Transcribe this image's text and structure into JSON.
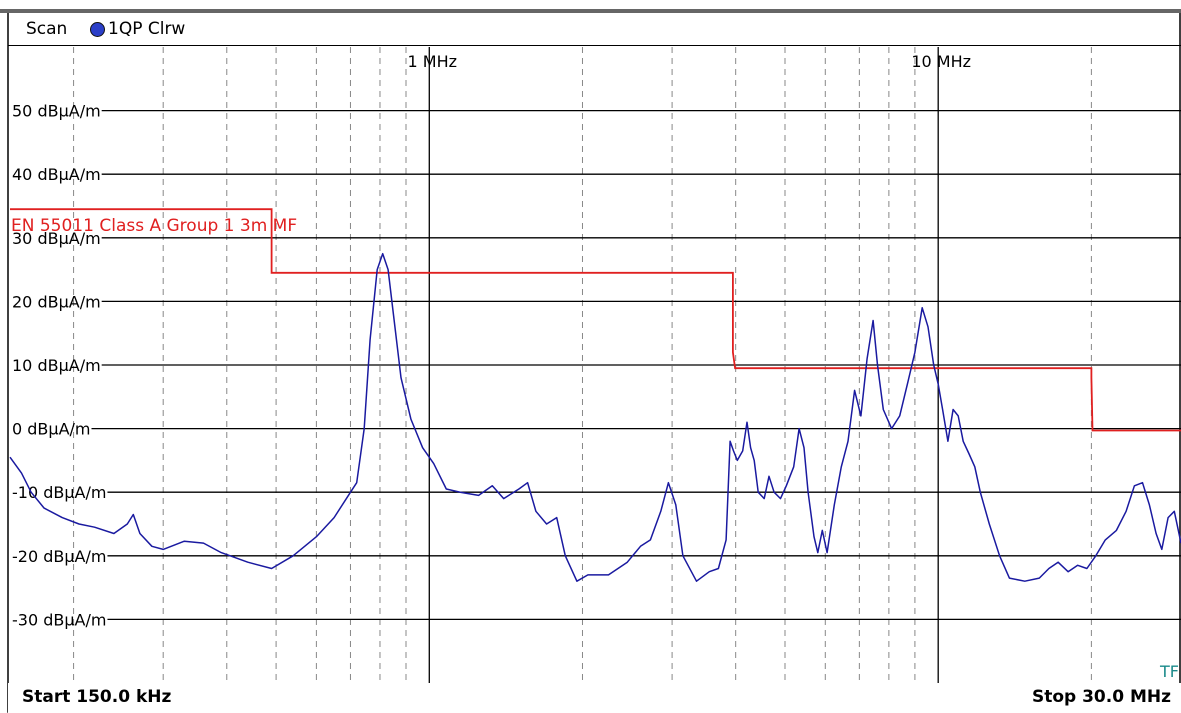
{
  "header": {
    "scan_label": "Scan",
    "trace_label": "1QP Clrw"
  },
  "footer": {
    "start_label": "Start 150.0 kHz",
    "stop_label": "Stop 30.0 MHz"
  },
  "tf_label": "TF",
  "colors": {
    "trace": "#1a1aa0",
    "limit": "#e02020",
    "trace_marker": "#2b3fc8",
    "tf_text": "#1a8a8a"
  },
  "chart_data": {
    "type": "line",
    "x_scale": "log",
    "xlim": [
      150000,
      30000000
    ],
    "ylim": [
      -40,
      60
    ],
    "grid": true,
    "y_ticks": [
      {
        "value": 50,
        "label": "50 dBµA/m"
      },
      {
        "value": 40,
        "label": "40 dBµA/m"
      },
      {
        "value": 30,
        "label": "30 dBµA/m"
      },
      {
        "value": 20,
        "label": "20 dBµA/m"
      },
      {
        "value": 10,
        "label": "10 dBµA/m"
      },
      {
        "value": 0,
        "label": "0 dBµA/m"
      },
      {
        "value": -10,
        "label": "-10 dBµA/m"
      },
      {
        "value": -20,
        "label": "-20 dBµA/m"
      },
      {
        "value": -30,
        "label": "-30 dBµA/m"
      }
    ],
    "x_major_ticks": [
      {
        "value": 1000000,
        "label": "1 MHz"
      },
      {
        "value": 10000000,
        "label": "10 MHz"
      }
    ],
    "x_minor_ticks": [
      200000,
      300000,
      400000,
      500000,
      600000,
      700000,
      800000,
      900000,
      2000000,
      3000000,
      4000000,
      5000000,
      6000000,
      7000000,
      8000000,
      9000000,
      20000000
    ],
    "limit_line": {
      "name": "EN 55011 Class A Group 1 3m MF",
      "points": [
        [
          150000,
          34.5
        ],
        [
          490000,
          34.5
        ],
        [
          490000,
          24.5
        ],
        [
          3950000,
          24.5
        ],
        [
          3950000,
          12
        ],
        [
          3990000,
          9.5
        ],
        [
          20000000,
          9.5
        ],
        [
          20000000,
          8
        ],
        [
          20100000,
          -0.3
        ],
        [
          30000000,
          -0.3
        ]
      ]
    },
    "series": [
      {
        "points": [
          [
            150000,
            -4.5
          ],
          [
            158000,
            -7
          ],
          [
            165000,
            -10
          ],
          [
            175000,
            -12.5
          ],
          [
            190000,
            -14
          ],
          [
            205000,
            -15
          ],
          [
            220000,
            -15.5
          ],
          [
            240000,
            -16.5
          ],
          [
            255000,
            -15
          ],
          [
            262000,
            -13.5
          ],
          [
            270000,
            -16.5
          ],
          [
            285000,
            -18.5
          ],
          [
            300000,
            -19
          ],
          [
            330000,
            -17.7
          ],
          [
            360000,
            -18
          ],
          [
            390000,
            -19.5
          ],
          [
            440000,
            -21
          ],
          [
            490000,
            -22
          ],
          [
            540000,
            -20
          ],
          [
            600000,
            -17
          ],
          [
            650000,
            -14
          ],
          [
            700000,
            -10
          ],
          [
            720000,
            -8.5
          ],
          [
            745000,
            0
          ],
          [
            765000,
            14
          ],
          [
            790000,
            25
          ],
          [
            810000,
            27.5
          ],
          [
            830000,
            25
          ],
          [
            850000,
            18
          ],
          [
            880000,
            8
          ],
          [
            920000,
            1.5
          ],
          [
            970000,
            -3
          ],
          [
            1020000,
            -5.5
          ],
          [
            1080000,
            -9.5
          ],
          [
            1150000,
            -10
          ],
          [
            1250000,
            -10.5
          ],
          [
            1330000,
            -9
          ],
          [
            1400000,
            -11
          ],
          [
            1500000,
            -9.5
          ],
          [
            1560000,
            -8.5
          ],
          [
            1620000,
            -13
          ],
          [
            1700000,
            -15
          ],
          [
            1780000,
            -14
          ],
          [
            1850000,
            -20
          ],
          [
            1950000,
            -24
          ],
          [
            2050000,
            -23
          ],
          [
            2250000,
            -23
          ],
          [
            2450000,
            -21
          ],
          [
            2600000,
            -18.5
          ],
          [
            2720000,
            -17.5
          ],
          [
            2850000,
            -13
          ],
          [
            2950000,
            -8.5
          ],
          [
            3050000,
            -12
          ],
          [
            3150000,
            -20
          ],
          [
            3350000,
            -24
          ],
          [
            3550000,
            -22.5
          ],
          [
            3700000,
            -22
          ],
          [
            3830000,
            -17.5
          ],
          [
            3900000,
            -2
          ],
          [
            3960000,
            -3.5
          ],
          [
            4030000,
            -5
          ],
          [
            4130000,
            -3.5
          ],
          [
            4210000,
            1
          ],
          [
            4280000,
            -3
          ],
          [
            4350000,
            -5
          ],
          [
            4430000,
            -10
          ],
          [
            4550000,
            -11
          ],
          [
            4650000,
            -7.5
          ],
          [
            4760000,
            -10
          ],
          [
            4900000,
            -11
          ],
          [
            5030000,
            -9
          ],
          [
            5200000,
            -6
          ],
          [
            5330000,
            0
          ],
          [
            5450000,
            -3
          ],
          [
            5550000,
            -10
          ],
          [
            5700000,
            -17
          ],
          [
            5800000,
            -19.5
          ],
          [
            5920000,
            -16
          ],
          [
            6050000,
            -19.5
          ],
          [
            6250000,
            -12
          ],
          [
            6450000,
            -6
          ],
          [
            6650000,
            -2
          ],
          [
            6850000,
            6
          ],
          [
            7050000,
            2
          ],
          [
            7250000,
            11
          ],
          [
            7450000,
            17
          ],
          [
            7600000,
            10
          ],
          [
            7800000,
            3
          ],
          [
            8100000,
            0
          ],
          [
            8400000,
            2
          ],
          [
            8700000,
            7
          ],
          [
            9000000,
            12
          ],
          [
            9300000,
            19
          ],
          [
            9550000,
            16
          ],
          [
            9800000,
            10
          ],
          [
            10000000,
            7
          ],
          [
            10200000,
            3
          ],
          [
            10450000,
            -2
          ],
          [
            10700000,
            3
          ],
          [
            10950000,
            2
          ],
          [
            11200000,
            -2
          ],
          [
            11500000,
            -4
          ],
          [
            11800000,
            -6
          ],
          [
            12100000,
            -10
          ],
          [
            12600000,
            -15
          ],
          [
            13200000,
            -20
          ],
          [
            13800000,
            -23.5
          ],
          [
            14800000,
            -24
          ],
          [
            15800000,
            -23.5
          ],
          [
            16500000,
            -22
          ],
          [
            17200000,
            -21
          ],
          [
            18000000,
            -22.5
          ],
          [
            18800000,
            -21.5
          ],
          [
            19600000,
            -22
          ],
          [
            20400000,
            -20
          ],
          [
            21300000,
            -17.5
          ],
          [
            22400000,
            -16
          ],
          [
            23400000,
            -13
          ],
          [
            24300000,
            -9
          ],
          [
            25200000,
            -8.5
          ],
          [
            26000000,
            -12
          ],
          [
            26800000,
            -16.5
          ],
          [
            27500000,
            -19
          ],
          [
            28300000,
            -14
          ],
          [
            29100000,
            -13
          ],
          [
            30000000,
            -18
          ]
        ]
      }
    ]
  }
}
